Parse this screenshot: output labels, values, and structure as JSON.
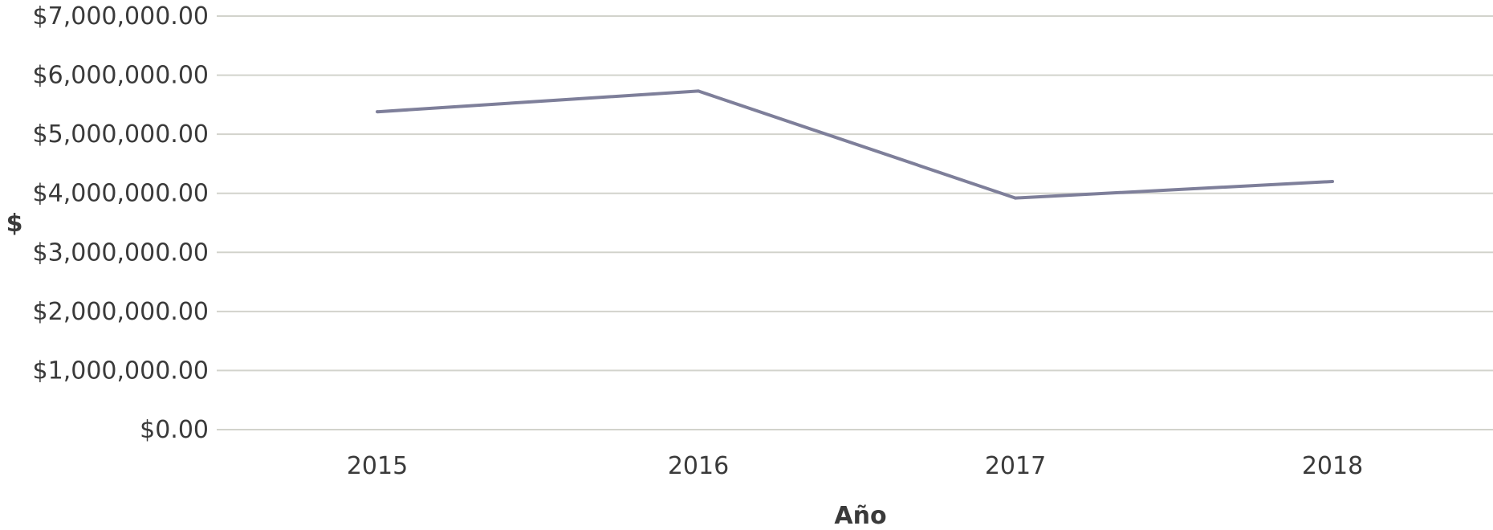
{
  "chart_data": {
    "type": "line",
    "title": "",
    "xlabel": "Año",
    "ylabel": "$",
    "categories": [
      "2015",
      "2016",
      "2017",
      "2018"
    ],
    "series": [
      {
        "values": [
          5380000,
          5730000,
          3920000,
          4200000
        ]
      }
    ],
    "ylim": [
      0,
      7000000
    ],
    "y_ticks": [
      0,
      1000000,
      2000000,
      3000000,
      4000000,
      5000000,
      6000000,
      7000000
    ],
    "y_tick_labels": [
      "$0.00",
      "$1,000,000.00",
      "$2,000,000.00",
      "$3,000,000.00",
      "$4,000,000.00",
      "$5,000,000.00",
      "$6,000,000.00",
      "$7,000,000.00"
    ],
    "grid": true,
    "legend": "none",
    "colors": {
      "line": "#7e7f9a",
      "grid": "#d2d3cc",
      "text": "#3a3a3a"
    }
  }
}
